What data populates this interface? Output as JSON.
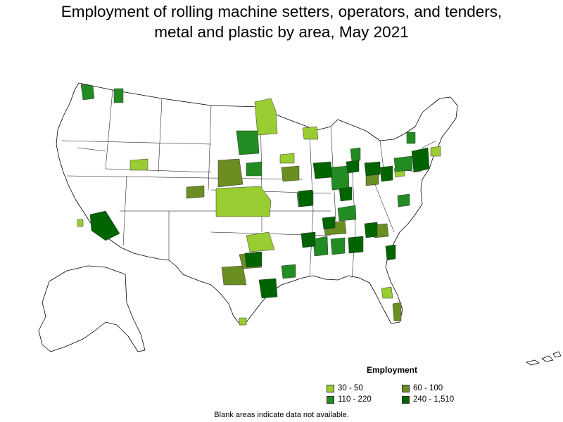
{
  "title_line1": "Employment of rolling machine setters, operators, and tenders,",
  "title_line2": "metal and plastic by area, May 2021",
  "legend": {
    "title": "Employment",
    "items": [
      {
        "label": "30 - 50",
        "color": "#9acd32"
      },
      {
        "label": "60 - 100",
        "color": "#6b8e23"
      },
      {
        "label": "110 - 220",
        "color": "#228b22"
      },
      {
        "label": "240 - 1,510",
        "color": "#006400"
      }
    ]
  },
  "footnote": "Blank areas indicate data not available."
}
